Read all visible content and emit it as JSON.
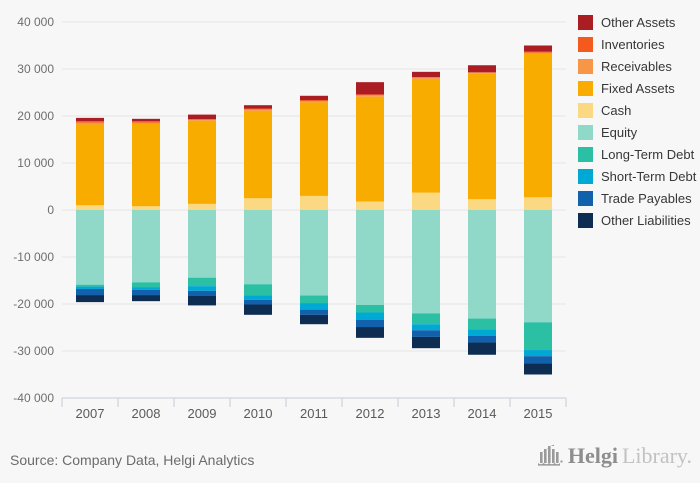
{
  "chart_data": {
    "type": "bar",
    "stacked": true,
    "title": "",
    "xlabel": "",
    "ylabel": "",
    "categories": [
      "2007",
      "2008",
      "2009",
      "2010",
      "2011",
      "2012",
      "2013",
      "2014",
      "2015"
    ],
    "series": [
      {
        "name": "Other Assets",
        "color": "#aa1e23",
        "values": [
          700,
          500,
          1000,
          700,
          900,
          2600,
          1100,
          1500,
          1300
        ]
      },
      {
        "name": "Inventories",
        "color": "#f4591d",
        "values": [
          300,
          300,
          100,
          200,
          200,
          200,
          100,
          100,
          200
        ]
      },
      {
        "name": "Receivables",
        "color": "#f79646",
        "values": [
          400,
          300,
          200,
          300,
          300,
          300,
          300,
          200,
          300
        ]
      },
      {
        "name": "Fixed Assets",
        "color": "#f8ac00",
        "values": [
          17200,
          17500,
          17700,
          18600,
          19900,
          22300,
          24200,
          26700,
          30500
        ]
      },
      {
        "name": "Cash",
        "color": "#fbd982",
        "values": [
          1000,
          800,
          1300,
          2500,
          3000,
          1800,
          3700,
          2300,
          2700
        ]
      },
      {
        "name": "Equity",
        "color": "#90d9c8",
        "values": [
          -15900,
          -15400,
          -14400,
          -15800,
          -18200,
          -20200,
          -22000,
          -23100,
          -23900
        ]
      },
      {
        "name": "Long-Term Debt",
        "color": "#2bbfa4",
        "values": [
          -400,
          -1000,
          -1800,
          -2400,
          -1600,
          -1600,
          -2300,
          -2300,
          -5900
        ]
      },
      {
        "name": "Short-Term Debt",
        "color": "#00a8d4",
        "values": [
          -500,
          -600,
          -1000,
          -900,
          -1400,
          -1600,
          -1300,
          -1400,
          -1300
        ]
      },
      {
        "name": "Trade Payables",
        "color": "#1161ac",
        "values": [
          -1300,
          -1100,
          -1100,
          -1000,
          -1100,
          -1500,
          -1400,
          -1400,
          -1500
        ]
      },
      {
        "name": "Other Liabilities",
        "color": "#0d2d52",
        "values": [
          -1500,
          -1300,
          -2000,
          -2200,
          -2000,
          -2300,
          -2400,
          -2600,
          -2400
        ]
      }
    ],
    "ylim": [
      -40000,
      40000
    ],
    "ytick_step": 10000,
    "ytick_labels": [
      "40 000",
      "30 000",
      "20 000",
      "10 000",
      "0",
      "-10 000",
      "-20 000",
      "-30 000",
      "-40 000"
    ],
    "grid": true,
    "legend_position": "right"
  },
  "legend": {
    "items": [
      {
        "label": "Other Assets",
        "color": "#aa1e23"
      },
      {
        "label": "Inventories",
        "color": "#f4591d"
      },
      {
        "label": "Receivables",
        "color": "#f79646"
      },
      {
        "label": "Fixed Assets",
        "color": "#f8ac00"
      },
      {
        "label": "Cash",
        "color": "#fbd982"
      },
      {
        "label": "Equity",
        "color": "#90d9c8"
      },
      {
        "label": "Long-Term Debt",
        "color": "#2bbfa4"
      },
      {
        "label": "Short-Term Debt",
        "color": "#00a8d4"
      },
      {
        "label": "Trade Payables",
        "color": "#1161ac"
      },
      {
        "label": "Other Liabilities",
        "color": "#0d2d52"
      }
    ]
  },
  "footer": {
    "source_text": "Source: Company Data, Helgi Analytics",
    "logo_primary": "Helgi",
    "logo_secondary": "Library."
  },
  "style_colors": {
    "background": "#f7f7f8",
    "gridline": "#e4e4e6",
    "axis": "#c6ccd9",
    "ytick_text": "#6e6e6e",
    "xtick_text": "#5a5a5a",
    "logo_icon": "#9a9a9a"
  }
}
